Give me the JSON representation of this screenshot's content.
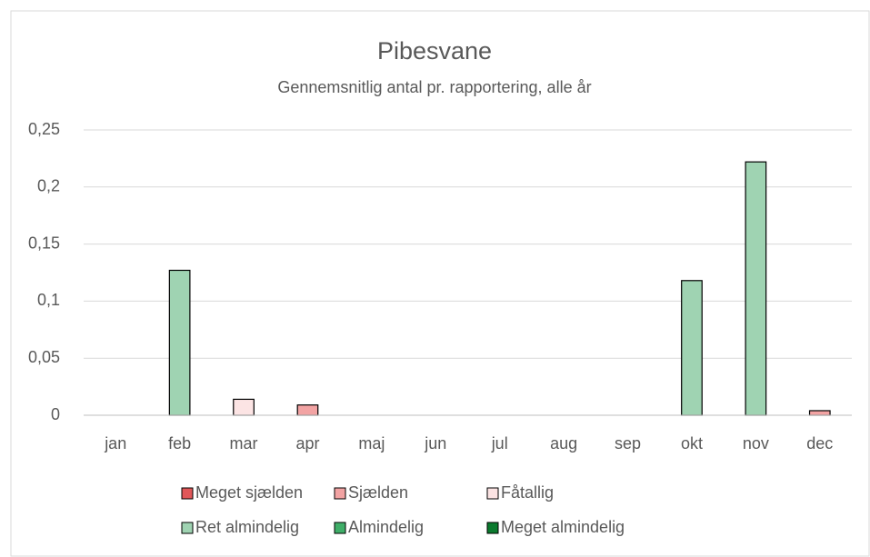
{
  "chart_data": {
    "type": "bar",
    "title": "Pibesvane",
    "subtitle": "Gennemsnitlig antal pr. rapportering, alle år",
    "categories": [
      "jan",
      "feb",
      "mar",
      "apr",
      "maj",
      "jun",
      "jul",
      "aug",
      "sep",
      "okt",
      "nov",
      "dec"
    ],
    "series": [
      {
        "name": "Meget sjælden",
        "color": "#e15759",
        "values": [
          null,
          null,
          null,
          null,
          null,
          null,
          null,
          null,
          null,
          null,
          null,
          null
        ]
      },
      {
        "name": "Sjælden",
        "color": "#f2a3a3",
        "values": [
          null,
          null,
          null,
          0.009,
          null,
          null,
          null,
          null,
          null,
          null,
          null,
          0.004
        ]
      },
      {
        "name": "Fåtallig",
        "color": "#fce4e4",
        "values": [
          null,
          null,
          0.014,
          null,
          null,
          null,
          null,
          null,
          null,
          null,
          null,
          null
        ]
      },
      {
        "name": "Ret almindelig",
        "color": "#9fd3b2",
        "values": [
          null,
          0.127,
          null,
          null,
          null,
          null,
          null,
          null,
          null,
          0.118,
          0.222,
          null
        ]
      },
      {
        "name": "Almindelig",
        "color": "#3fae68",
        "values": [
          null,
          null,
          null,
          null,
          null,
          null,
          null,
          null,
          null,
          null,
          null,
          null
        ]
      },
      {
        "name": "Meget almindelig",
        "color": "#0b7a2e",
        "values": [
          null,
          null,
          null,
          null,
          null,
          null,
          null,
          null,
          null,
          null,
          null,
          null
        ]
      }
    ],
    "ylim": [
      0,
      0.25
    ],
    "yticks": [
      0,
      {
        "value": 0.05,
        "label": "0,05"
      },
      {
        "value": 0.1,
        "label": "0,1"
      },
      {
        "value": 0.15,
        "label": "0,15"
      },
      {
        "value": 0.2,
        "label": "0,2"
      },
      {
        "value": 0.25,
        "label": "0,25"
      }
    ],
    "grid": true,
    "legend": "bottom"
  }
}
